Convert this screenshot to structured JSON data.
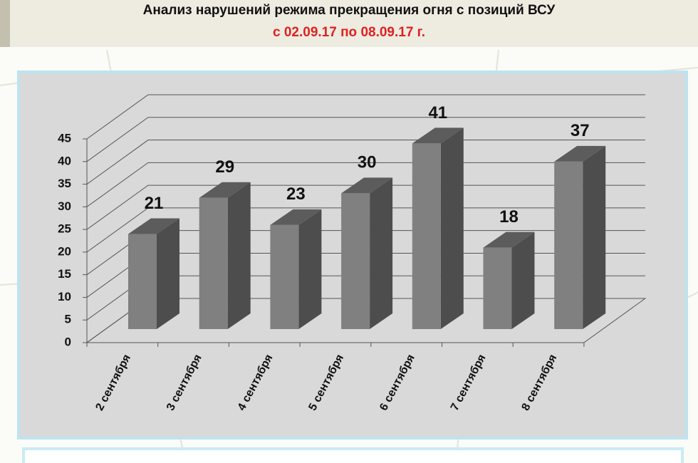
{
  "chart_data": {
    "type": "bar3d",
    "title": "Анализ нарушений режима прекращения огня с позиций ВСУ",
    "subtitle": "с 02.09.17 по 08.09.17 г.",
    "categories": [
      "2 сентября",
      "3 сентября",
      "4 сентября",
      "5 сентября",
      "6 сентября",
      "7 сентября",
      "8 сентября"
    ],
    "values": [
      21,
      29,
      23,
      30,
      41,
      18,
      37
    ],
    "color": "#808080",
    "ylim": [
      0,
      45
    ],
    "yticks": [
      0,
      5,
      10,
      15,
      20,
      25,
      30,
      35,
      40,
      45
    ],
    "grid": true
  }
}
